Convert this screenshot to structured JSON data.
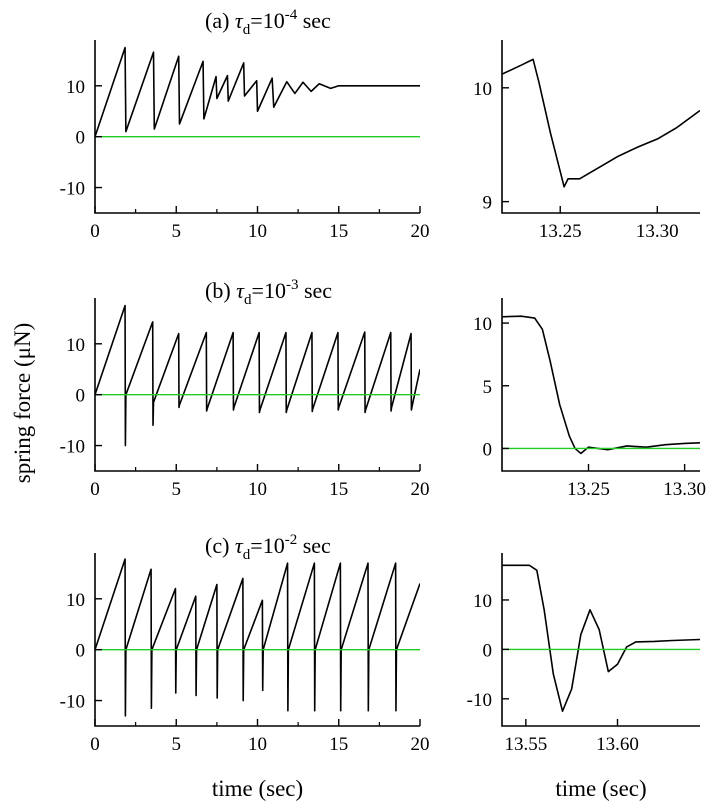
{
  "chart_data": [
    {
      "id": "a-main",
      "type": "line",
      "title": {
        "prefix": "(a)",
        "symbol": "τ",
        "subscript": "d",
        "equals": "=10",
        "exponent": "-4",
        "unit": "sec"
      },
      "xlabel": "",
      "ylabel": "",
      "xlim": [
        0,
        20
      ],
      "ylim": [
        -15,
        19
      ],
      "xticks": [
        0,
        5,
        10,
        15,
        20
      ],
      "yticks": [
        -10,
        0,
        10
      ],
      "series": [
        {
          "style": "line",
          "color": "#000000",
          "x": [
            0,
            1.85,
            1.9,
            3.6,
            3.65,
            5.15,
            5.2,
            6.65,
            6.7,
            7.45,
            7.5,
            8.15,
            8.2,
            9.15,
            9.2,
            9.95,
            10.0,
            10.9,
            11.0,
            11.8,
            12.3,
            12.8,
            13.3,
            13.8,
            14.5,
            15.0,
            20.0
          ],
          "y": [
            0,
            17.5,
            1.0,
            16.6,
            1.5,
            15.8,
            2.5,
            14.8,
            3.5,
            11.8,
            7.5,
            12.0,
            7.0,
            14.5,
            8.0,
            11.0,
            5.0,
            11.5,
            5.8,
            10.8,
            8.5,
            10.7,
            8.9,
            10.4,
            9.5,
            10.0,
            10.0
          ]
        },
        {
          "style": "line",
          "color": "#22cc22",
          "x": [
            0,
            20
          ],
          "y": [
            0,
            0
          ]
        }
      ]
    },
    {
      "id": "a-zoom",
      "type": "line",
      "xlabel": "",
      "ylabel": "",
      "xlim": [
        13.22,
        13.322
      ],
      "ylim": [
        8.9,
        10.42
      ],
      "xticks": [
        13.25,
        13.3
      ],
      "xtick_labels": [
        "13.25",
        "13.30"
      ],
      "yticks": [
        9,
        10
      ],
      "series": [
        {
          "style": "line",
          "color": "#000000",
          "x": [
            13.22,
            13.23,
            13.236,
            13.239,
            13.245,
            13.252,
            13.254,
            13.26,
            13.27,
            13.28,
            13.29,
            13.3,
            13.31,
            13.322
          ],
          "y": [
            10.12,
            10.2,
            10.25,
            10.05,
            9.6,
            9.13,
            9.2,
            9.2,
            9.3,
            9.4,
            9.48,
            9.55,
            9.65,
            9.8
          ]
        }
      ]
    },
    {
      "id": "b-main",
      "type": "line",
      "title": {
        "prefix": "(b)",
        "symbol": "τ",
        "subscript": "d",
        "equals": "=10",
        "exponent": "-3",
        "unit": "sec"
      },
      "xlabel": "",
      "ylabel": "",
      "xlim": [
        0,
        20
      ],
      "ylim": [
        -15,
        19
      ],
      "xticks": [
        0,
        5,
        10,
        15,
        20
      ],
      "yticks": [
        -10,
        0,
        10
      ],
      "series": [
        {
          "style": "line",
          "color": "#000000",
          "x": [
            0,
            1.85,
            1.87,
            1.9,
            3.55,
            3.57,
            3.6,
            5.15,
            5.17,
            5.2,
            6.85,
            6.87,
            6.9,
            8.5,
            8.52,
            8.55,
            10.1,
            10.12,
            10.15,
            11.75,
            11.77,
            11.8,
            13.35,
            13.37,
            13.4,
            14.95,
            14.97,
            15.0,
            16.6,
            16.62,
            16.65,
            18.2,
            18.22,
            18.25,
            19.45,
            19.47,
            19.5,
            20.0
          ],
          "y": [
            0,
            17.5,
            -10.0,
            0,
            14.3,
            -6.0,
            -1.5,
            12.0,
            -2.5,
            -2.0,
            12.2,
            -3.2,
            -2.8,
            12.2,
            -3.0,
            -2.5,
            12.2,
            -3.5,
            -3.0,
            12.2,
            -3.5,
            -3.0,
            12.2,
            -3.3,
            -2.8,
            12.2,
            -3.0,
            -2.5,
            12.3,
            -3.5,
            -3.0,
            12.2,
            -3.2,
            -2.5,
            12.0,
            -3.0,
            -2.5,
            5.0
          ]
        },
        {
          "style": "line",
          "color": "#22cc22",
          "x": [
            0,
            20
          ],
          "y": [
            0,
            0
          ]
        }
      ]
    },
    {
      "id": "b-zoom",
      "type": "line",
      "xlabel": "",
      "ylabel": "",
      "xlim": [
        13.205,
        13.308
      ],
      "ylim": [
        -1.8,
        12.0
      ],
      "xticks": [
        13.25,
        13.3
      ],
      "xtick_labels": [
        "13.25",
        "13.30"
      ],
      "yticks": [
        0,
        5,
        10
      ],
      "series": [
        {
          "style": "line",
          "color": "#000000",
          "x": [
            13.205,
            13.215,
            13.222,
            13.226,
            13.23,
            13.235,
            13.24,
            13.243,
            13.246,
            13.25,
            13.26,
            13.27,
            13.28,
            13.29,
            13.3,
            13.308
          ],
          "y": [
            10.5,
            10.55,
            10.4,
            9.5,
            7.0,
            3.5,
            1.0,
            0.0,
            -0.4,
            0.1,
            -0.1,
            0.2,
            0.1,
            0.3,
            0.4,
            0.45
          ]
        },
        {
          "style": "line",
          "color": "#22cc22",
          "x": [
            13.205,
            13.308
          ],
          "y": [
            0,
            0
          ]
        }
      ]
    },
    {
      "id": "c-main",
      "type": "line",
      "title": {
        "prefix": "(c)",
        "symbol": "τ",
        "subscript": "d",
        "equals": "=10",
        "exponent": "-2",
        "unit": "sec"
      },
      "xlabel": "time (sec)",
      "ylabel": "",
      "xlim": [
        0,
        20
      ],
      "ylim": [
        -15,
        19
      ],
      "xticks": [
        0,
        5,
        10,
        15,
        20
      ],
      "yticks": [
        -10,
        0,
        10
      ],
      "series": [
        {
          "style": "line",
          "color": "#000000",
          "x": [
            0,
            1.85,
            1.87,
            1.9,
            3.45,
            3.47,
            3.5,
            4.95,
            4.97,
            5.0,
            6.2,
            6.22,
            6.25,
            7.5,
            7.52,
            7.55,
            9.1,
            9.12,
            9.15,
            10.3,
            10.32,
            10.35,
            11.85,
            11.87,
            11.9,
            13.5,
            13.52,
            13.55,
            15.1,
            15.12,
            15.15,
            16.8,
            16.82,
            16.85,
            18.5,
            18.52,
            18.55,
            20.0
          ],
          "y": [
            0,
            17.8,
            -13.0,
            0,
            15.8,
            -11.5,
            0,
            12.0,
            -8.5,
            0,
            10.5,
            -9.0,
            0,
            12.8,
            -9.5,
            0,
            14.0,
            -10.0,
            0,
            9.7,
            -8.0,
            0,
            17.0,
            -12.0,
            0,
            17.0,
            -12.0,
            0,
            17.0,
            -12.0,
            0,
            17.0,
            -12.0,
            0,
            17.0,
            -12.0,
            0,
            13.0
          ]
        },
        {
          "style": "line",
          "color": "#22cc22",
          "x": [
            0,
            20
          ],
          "y": [
            0,
            0
          ]
        }
      ]
    },
    {
      "id": "c-zoom",
      "type": "line",
      "xlabel": "time (sec)",
      "ylabel": "",
      "xlim": [
        13.537,
        13.645
      ],
      "ylim": [
        -15.5,
        19.5
      ],
      "xticks": [
        13.55,
        13.6
      ],
      "xtick_labels": [
        "13.55",
        "13.60"
      ],
      "yticks": [
        -10,
        0,
        10
      ],
      "series": [
        {
          "style": "line",
          "color": "#000000",
          "x": [
            13.537,
            13.552,
            13.556,
            13.56,
            13.565,
            13.57,
            13.575,
            13.58,
            13.585,
            13.59,
            13.595,
            13.6,
            13.605,
            13.61,
            13.62,
            13.63,
            13.645
          ],
          "y": [
            17.0,
            17.0,
            16.0,
            8.0,
            -5.0,
            -12.5,
            -8.0,
            3.0,
            8.0,
            4.0,
            -4.5,
            -3.0,
            0.5,
            1.5,
            1.6,
            1.8,
            2.0
          ]
        },
        {
          "style": "line",
          "color": "#22cc22",
          "x": [
            13.537,
            13.645
          ],
          "y": [
            0,
            0
          ]
        }
      ]
    }
  ],
  "shared": {
    "ylabel": "spring force (μN)"
  }
}
